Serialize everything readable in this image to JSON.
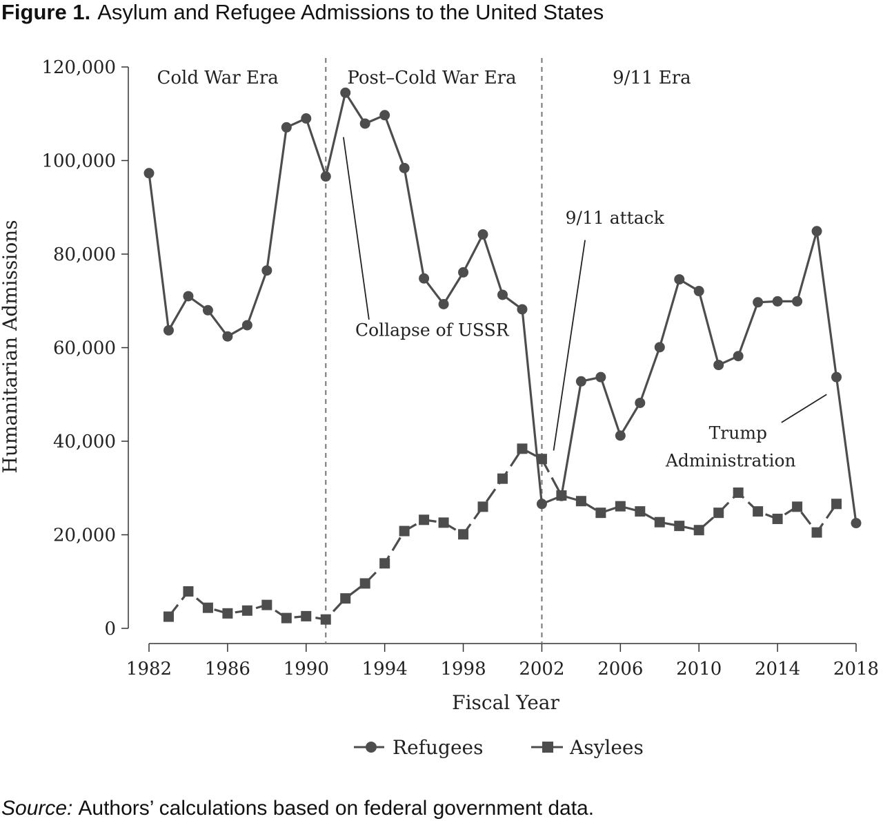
{
  "figure": {
    "label": "Figure 1.",
    "title": "Asylum and Refugee Admissions to the United States"
  },
  "source": {
    "label": "Source:",
    "text": "Authors’ calculations based on federal government data."
  },
  "colors": {
    "series": "#4d4d4d",
    "divider": "#808080",
    "text": "#222222"
  },
  "chart_data": {
    "type": "line",
    "xlabel": "Fiscal Year",
    "ylabel": "Humanitarian Admissions",
    "xlim": [
      1982,
      2018
    ],
    "ylim": [
      0,
      120000
    ],
    "xticks": [
      1982,
      1986,
      1990,
      1994,
      1998,
      2002,
      2006,
      2010,
      2014,
      2018
    ],
    "yticks": [
      0,
      20000,
      40000,
      60000,
      80000,
      100000,
      120000
    ],
    "ytick_labels": [
      "0",
      "20,000",
      "40,000",
      "60,000",
      "80,000",
      "100,000",
      "120,000"
    ],
    "eras": [
      {
        "label": "Cold War Era",
        "x": 1985.5
      },
      {
        "label": "Post–Cold War Era",
        "x": 1996.4
      },
      {
        "label": "9/11 Era",
        "x": 2007.6
      }
    ],
    "dividers": [
      1991,
      2002
    ],
    "annotations": [
      {
        "lines": [
          "Collapse of USSR"
        ],
        "text_x": 1992.5,
        "text_y": 62500,
        "line_from": [
          1993.2,
          66000
        ],
        "line_to": [
          1991.9,
          105000
        ]
      },
      {
        "lines": [
          "9/11 attack"
        ],
        "text_x": 2003.2,
        "text_y": 86500,
        "line_from": [
          2004.2,
          83000
        ],
        "line_to": [
          2002.6,
          38000
        ]
      },
      {
        "lines": [
          "Trump",
          "Administration"
        ],
        "text_x": 2008.3,
        "text_y": 40500,
        "line_from": [
          2014.2,
          44000
        ],
        "line_to": [
          2016.5,
          50000
        ]
      }
    ],
    "legend_position": "bottom-center",
    "series": [
      {
        "name": "Refugees",
        "marker": "circle",
        "dash": "solid",
        "x": [
          1982,
          1983,
          1984,
          1985,
          1986,
          1987,
          1988,
          1989,
          1990,
          1991,
          1992,
          1993,
          1994,
          1995,
          1996,
          1997,
          1998,
          1999,
          2000,
          2001,
          2002,
          2003,
          2004,
          2005,
          2006,
          2007,
          2008,
          2009,
          2010,
          2011,
          2012,
          2013,
          2014,
          2015,
          2016,
          2017,
          2018
        ],
        "values": [
          97300,
          63700,
          71000,
          68000,
          62400,
          64800,
          76500,
          107100,
          109000,
          96600,
          114500,
          107900,
          109700,
          98400,
          74800,
          69300,
          76100,
          84200,
          71300,
          68200,
          26600,
          28300,
          52800,
          53700,
          41200,
          48200,
          60100,
          74600,
          72100,
          56300,
          58200,
          69700,
          69900,
          69900,
          84900,
          53700,
          22500
        ]
      },
      {
        "name": "Asylees",
        "marker": "square",
        "dash": "dashed",
        "x": [
          1983,
          1984,
          1985,
          1986,
          1987,
          1988,
          1989,
          1990,
          1991,
          1992,
          1993,
          1994,
          1995,
          1996,
          1997,
          1998,
          1999,
          2000,
          2001,
          2002,
          2003,
          2004,
          2005,
          2006,
          2007,
          2008,
          2009,
          2010,
          2011,
          2012,
          2013,
          2014,
          2015,
          2016,
          2017
        ],
        "values": [
          2500,
          7900,
          4400,
          3200,
          3800,
          5000,
          2200,
          2600,
          1900,
          6400,
          9600,
          13900,
          20800,
          23200,
          22600,
          20100,
          26000,
          32000,
          38400,
          36200,
          28400,
          27200,
          24700,
          26100,
          25000,
          22700,
          21900,
          21000,
          24700,
          29000,
          25000,
          23400,
          26000,
          20500,
          26600
        ]
      }
    ]
  }
}
